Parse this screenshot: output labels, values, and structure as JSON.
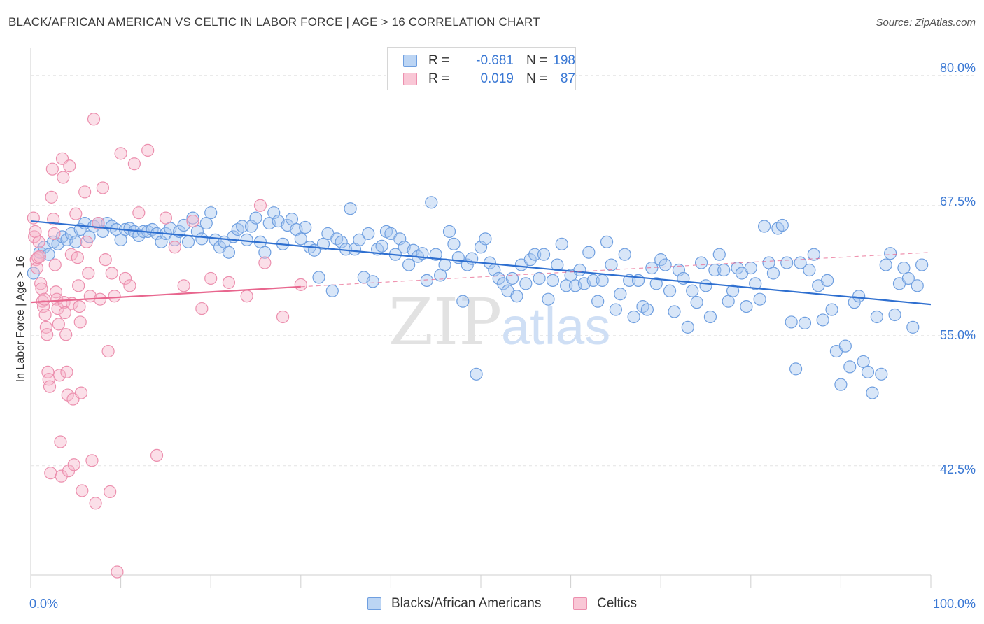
{
  "title": "BLACK/AFRICAN AMERICAN VS CELTIC IN LABOR FORCE | AGE > 16 CORRELATION CHART",
  "source": "Source: ZipAtlas.com",
  "watermark": {
    "zip": "ZIP",
    "atlas": "atlas"
  },
  "colors": {
    "blue_fill": "#a9c8ef",
    "blue_stroke": "#6f9fe0",
    "blue_line": "#2e6fd0",
    "pink_fill": "#f6b9cb",
    "pink_stroke": "#ec8fae",
    "pink_line": "#e8668e",
    "tick_text": "#3a78d4",
    "grid": "#e3e3e3"
  },
  "legend": {
    "rows": [
      {
        "swatch": "blue",
        "r_label": "R =",
        "r_value": "-0.681",
        "n_label": "N =",
        "n_value": "198"
      },
      {
        "swatch": "pink",
        "r_label": "R =",
        "r_value": "0.019",
        "n_label": "N =",
        "n_value": "87"
      }
    ]
  },
  "bottom_legend": [
    {
      "swatch": "blue",
      "label": "Blacks/African Americans"
    },
    {
      "swatch": "pink",
      "label": "Celtics"
    }
  ],
  "chart_data": {
    "type": "scatter",
    "title": "BLACK/AFRICAN AMERICAN VS CELTIC IN LABOR FORCE | AGE > 16 CORRELATION CHART",
    "xlabel": "",
    "ylabel": "In Labor Force | Age > 16",
    "xlim": [
      0,
      100
    ],
    "ylim": [
      32,
      82
    ],
    "x_tick_labels": [
      {
        "value": 0,
        "label": "0.0%"
      },
      {
        "value": 100,
        "label": "100.0%"
      }
    ],
    "y_tick_labels": [
      {
        "value": 80.0,
        "label": "80.0%"
      },
      {
        "value": 67.5,
        "label": "67.5%"
      },
      {
        "value": 55.0,
        "label": "55.0%"
      },
      {
        "value": 42.5,
        "label": "42.5%"
      }
    ],
    "grid": "horizontal dashed",
    "legend_placement": "top-center",
    "series": [
      {
        "name": "Blacks/African Americans",
        "color": "blue",
        "trend": {
          "x0": 0,
          "y0": 66.0,
          "x1": 100,
          "y1": 58.0
        },
        "points": [
          [
            0.3,
            61.0
          ],
          [
            1.0,
            63.0
          ],
          [
            1.5,
            63.5
          ],
          [
            2.0,
            62.8
          ],
          [
            2.5,
            64.0
          ],
          [
            3.0,
            63.8
          ],
          [
            3.5,
            64.5
          ],
          [
            4.0,
            64.2
          ],
          [
            4.5,
            64.8
          ],
          [
            5.0,
            64.0
          ],
          [
            5.5,
            65.2
          ],
          [
            6.0,
            65.8
          ],
          [
            6.5,
            64.5
          ],
          [
            7.0,
            65.5
          ],
          [
            7.5,
            65.8
          ],
          [
            8.0,
            65.0
          ],
          [
            8.5,
            65.8
          ],
          [
            9.0,
            65.5
          ],
          [
            9.5,
            65.2
          ],
          [
            10.0,
            64.2
          ],
          [
            10.5,
            65.2
          ],
          [
            11.0,
            65.3
          ],
          [
            11.5,
            65.0
          ],
          [
            12.0,
            64.6
          ],
          [
            12.5,
            65.0
          ],
          [
            13.0,
            65.0
          ],
          [
            13.5,
            65.2
          ],
          [
            14.0,
            64.8
          ],
          [
            14.5,
            64.0
          ],
          [
            15.0,
            64.8
          ],
          [
            15.5,
            65.3
          ],
          [
            16.0,
            64.2
          ],
          [
            16.5,
            65.0
          ],
          [
            17.0,
            65.6
          ],
          [
            17.5,
            64.0
          ],
          [
            18.0,
            66.3
          ],
          [
            18.5,
            65.0
          ],
          [
            19.0,
            64.3
          ],
          [
            19.5,
            65.8
          ],
          [
            20.0,
            66.8
          ],
          [
            20.5,
            64.2
          ],
          [
            21.0,
            63.5
          ],
          [
            21.5,
            64.0
          ],
          [
            22.0,
            63.0
          ],
          [
            22.5,
            64.5
          ],
          [
            23.0,
            65.2
          ],
          [
            23.5,
            65.5
          ],
          [
            24.0,
            64.2
          ],
          [
            24.5,
            65.5
          ],
          [
            25.0,
            66.3
          ],
          [
            25.5,
            64.0
          ],
          [
            26.0,
            63.0
          ],
          [
            26.5,
            65.8
          ],
          [
            27.0,
            66.8
          ],
          [
            27.5,
            66.0
          ],
          [
            28.0,
            63.8
          ],
          [
            28.5,
            65.6
          ],
          [
            29.0,
            66.2
          ],
          [
            29.5,
            65.2
          ],
          [
            30.0,
            64.3
          ],
          [
            30.5,
            65.4
          ],
          [
            31.0,
            63.5
          ],
          [
            31.5,
            63.2
          ],
          [
            32.0,
            60.6
          ],
          [
            32.5,
            63.8
          ],
          [
            33.0,
            64.8
          ],
          [
            33.5,
            59.3
          ],
          [
            34.0,
            64.3
          ],
          [
            34.5,
            64.0
          ],
          [
            35.0,
            63.3
          ],
          [
            35.5,
            67.2
          ],
          [
            36.0,
            63.3
          ],
          [
            36.5,
            64.2
          ],
          [
            37.0,
            60.6
          ],
          [
            37.5,
            64.8
          ],
          [
            38.0,
            60.2
          ],
          [
            38.5,
            63.3
          ],
          [
            39.0,
            63.6
          ],
          [
            39.5,
            65.0
          ],
          [
            40.0,
            64.8
          ],
          [
            40.5,
            62.8
          ],
          [
            41.0,
            64.3
          ],
          [
            41.5,
            63.5
          ],
          [
            42.0,
            61.8
          ],
          [
            42.5,
            63.2
          ],
          [
            43.0,
            62.6
          ],
          [
            43.5,
            62.9
          ],
          [
            44.0,
            60.3
          ],
          [
            44.5,
            67.8
          ],
          [
            45.0,
            62.8
          ],
          [
            45.5,
            60.8
          ],
          [
            46.0,
            61.8
          ],
          [
            46.5,
            65.0
          ],
          [
            47.0,
            63.8
          ],
          [
            47.5,
            62.5
          ],
          [
            48.0,
            58.3
          ],
          [
            48.5,
            61.8
          ],
          [
            49.0,
            62.4
          ],
          [
            49.5,
            51.3
          ],
          [
            50.0,
            63.5
          ],
          [
            50.5,
            64.3
          ],
          [
            51.0,
            62.0
          ],
          [
            51.5,
            61.3
          ],
          [
            52.0,
            60.5
          ],
          [
            52.5,
            60.0
          ],
          [
            53.0,
            59.3
          ],
          [
            53.5,
            60.5
          ],
          [
            54.0,
            58.8
          ],
          [
            54.5,
            61.8
          ],
          [
            55.0,
            60.0
          ],
          [
            55.5,
            62.3
          ],
          [
            56.0,
            62.8
          ],
          [
            56.5,
            60.5
          ],
          [
            57.0,
            62.8
          ],
          [
            57.5,
            58.5
          ],
          [
            58.0,
            60.3
          ],
          [
            58.5,
            61.8
          ],
          [
            59.0,
            63.8
          ],
          [
            59.5,
            59.8
          ],
          [
            60.0,
            60.8
          ],
          [
            60.5,
            59.8
          ],
          [
            61.0,
            61.3
          ],
          [
            61.5,
            60.0
          ],
          [
            62.0,
            63.0
          ],
          [
            62.5,
            60.3
          ],
          [
            63.0,
            58.3
          ],
          [
            63.5,
            60.3
          ],
          [
            64.0,
            64.0
          ],
          [
            64.5,
            61.8
          ],
          [
            65.0,
            57.5
          ],
          [
            65.5,
            59.0
          ],
          [
            66.0,
            62.8
          ],
          [
            66.5,
            60.3
          ],
          [
            67.0,
            56.8
          ],
          [
            67.5,
            60.3
          ],
          [
            68.0,
            57.8
          ],
          [
            68.5,
            57.5
          ],
          [
            69.0,
            61.5
          ],
          [
            69.5,
            60.0
          ],
          [
            70.0,
            62.3
          ],
          [
            70.5,
            61.8
          ],
          [
            71.0,
            59.3
          ],
          [
            71.5,
            57.3
          ],
          [
            72.0,
            61.3
          ],
          [
            72.5,
            60.5
          ],
          [
            73.0,
            55.8
          ],
          [
            73.5,
            59.3
          ],
          [
            74.0,
            58.2
          ],
          [
            74.5,
            62.0
          ],
          [
            75.0,
            59.8
          ],
          [
            75.5,
            56.8
          ],
          [
            76.0,
            61.3
          ],
          [
            76.5,
            62.8
          ],
          [
            77.0,
            61.3
          ],
          [
            77.5,
            58.3
          ],
          [
            78.0,
            59.3
          ],
          [
            78.5,
            61.5
          ],
          [
            79.0,
            61.0
          ],
          [
            79.5,
            57.8
          ],
          [
            80.0,
            61.5
          ],
          [
            80.5,
            60.0
          ],
          [
            81.0,
            58.5
          ],
          [
            81.5,
            65.5
          ],
          [
            82.0,
            62.0
          ],
          [
            82.5,
            61.0
          ],
          [
            83.0,
            65.3
          ],
          [
            83.5,
            65.6
          ],
          [
            84.0,
            62.0
          ],
          [
            84.5,
            56.3
          ],
          [
            85.0,
            51.8
          ],
          [
            85.5,
            62.0
          ],
          [
            86.0,
            56.2
          ],
          [
            86.5,
            61.3
          ],
          [
            87.0,
            62.8
          ],
          [
            87.5,
            59.8
          ],
          [
            88.0,
            56.5
          ],
          [
            88.5,
            60.3
          ],
          [
            89.0,
            57.5
          ],
          [
            89.5,
            53.5
          ],
          [
            90.0,
            50.3
          ],
          [
            90.5,
            54.0
          ],
          [
            91.0,
            52.0
          ],
          [
            91.5,
            58.2
          ],
          [
            92.0,
            58.8
          ],
          [
            92.5,
            52.5
          ],
          [
            93.0,
            51.5
          ],
          [
            93.5,
            49.5
          ],
          [
            94.0,
            56.8
          ],
          [
            94.5,
            51.3
          ],
          [
            95.0,
            61.8
          ],
          [
            95.5,
            62.9
          ],
          [
            96.0,
            57.0
          ],
          [
            96.5,
            60.0
          ],
          [
            97.0,
            61.5
          ],
          [
            97.5,
            60.5
          ],
          [
            98.0,
            55.8
          ],
          [
            98.5,
            59.8
          ],
          [
            99.0,
            61.8
          ]
        ]
      },
      {
        "name": "Celtics",
        "color": "pink",
        "trend": {
          "x0": 0,
          "y0": 58.2,
          "x1": 30,
          "y1": 59.7
        },
        "trend_extended": {
          "x0": 30,
          "y0": 59.7,
          "x1": 100,
          "y1": 63.0
        },
        "points": [
          [
            0.3,
            66.3
          ],
          [
            0.4,
            64.5
          ],
          [
            0.5,
            65.0
          ],
          [
            0.6,
            62.3
          ],
          [
            0.7,
            61.5
          ],
          [
            0.8,
            62.5
          ],
          [
            0.9,
            64.0
          ],
          [
            1.0,
            62.6
          ],
          [
            1.1,
            60.0
          ],
          [
            1.2,
            59.5
          ],
          [
            1.3,
            58.3
          ],
          [
            1.4,
            57.8
          ],
          [
            1.5,
            58.5
          ],
          [
            1.6,
            57.0
          ],
          [
            1.7,
            55.8
          ],
          [
            1.8,
            55.1
          ],
          [
            1.9,
            51.5
          ],
          [
            2.0,
            50.8
          ],
          [
            2.1,
            50.1
          ],
          [
            2.2,
            41.8
          ],
          [
            2.3,
            68.3
          ],
          [
            2.4,
            71.0
          ],
          [
            2.5,
            66.2
          ],
          [
            2.6,
            64.8
          ],
          [
            2.7,
            61.8
          ],
          [
            2.8,
            59.2
          ],
          [
            2.9,
            58.5
          ],
          [
            3.0,
            57.6
          ],
          [
            3.1,
            56.1
          ],
          [
            3.2,
            51.2
          ],
          [
            3.3,
            44.8
          ],
          [
            3.4,
            41.5
          ],
          [
            3.5,
            72.0
          ],
          [
            3.6,
            70.2
          ],
          [
            3.7,
            58.2
          ],
          [
            3.8,
            57.2
          ],
          [
            3.9,
            55.1
          ],
          [
            4.0,
            51.5
          ],
          [
            4.1,
            49.3
          ],
          [
            4.2,
            42.0
          ],
          [
            4.3,
            71.3
          ],
          [
            4.5,
            62.8
          ],
          [
            4.6,
            58.1
          ],
          [
            4.7,
            48.9
          ],
          [
            4.8,
            42.6
          ],
          [
            5.0,
            66.7
          ],
          [
            5.2,
            62.5
          ],
          [
            5.3,
            59.8
          ],
          [
            5.4,
            57.8
          ],
          [
            5.5,
            56.3
          ],
          [
            5.6,
            49.5
          ],
          [
            5.7,
            40.1
          ],
          [
            6.0,
            68.8
          ],
          [
            6.2,
            64.0
          ],
          [
            6.4,
            61.0
          ],
          [
            6.6,
            58.8
          ],
          [
            6.8,
            43.0
          ],
          [
            7.0,
            75.8
          ],
          [
            7.2,
            38.9
          ],
          [
            7.5,
            65.8
          ],
          [
            7.7,
            58.5
          ],
          [
            8.0,
            69.2
          ],
          [
            8.3,
            62.3
          ],
          [
            8.6,
            53.5
          ],
          [
            8.8,
            40.0
          ],
          [
            9.0,
            61.0
          ],
          [
            9.3,
            58.8
          ],
          [
            9.6,
            32.3
          ],
          [
            10.0,
            72.5
          ],
          [
            10.5,
            60.5
          ],
          [
            11.0,
            59.8
          ],
          [
            11.5,
            71.5
          ],
          [
            12.0,
            66.8
          ],
          [
            13.0,
            72.8
          ],
          [
            14.0,
            43.5
          ],
          [
            15.0,
            66.3
          ],
          [
            16.0,
            63.5
          ],
          [
            17.0,
            59.8
          ],
          [
            18.0,
            66.0
          ],
          [
            19.0,
            57.6
          ],
          [
            20.0,
            60.5
          ],
          [
            22.0,
            60.1
          ],
          [
            24.0,
            58.8
          ],
          [
            26.0,
            62.0
          ],
          [
            28.0,
            56.8
          ],
          [
            30.0,
            59.9
          ],
          [
            25.5,
            67.5
          ]
        ]
      }
    ]
  }
}
